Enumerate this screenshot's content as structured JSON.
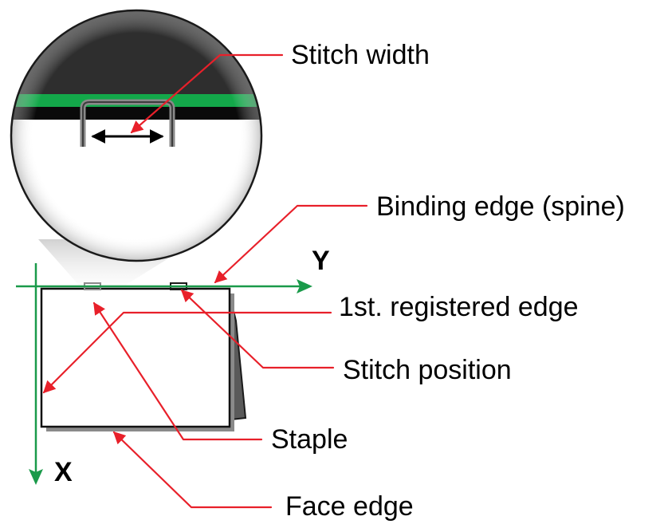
{
  "labels": {
    "stitch_width": "Stitch width",
    "binding_edge": "Binding edge (spine)",
    "first_registered_edge": "1st. registered edge",
    "stitch_position": "Stitch position",
    "staple": "Staple",
    "face_edge": "Face edge"
  },
  "axes": {
    "x": "X",
    "y": "Y"
  },
  "colors": {
    "leader_line": "#e8202a",
    "axis": "#1a9a4a",
    "band": "#13a84a",
    "magnifier_dark": "#2e2e2e",
    "sheet_shadow": "#7a7a7a"
  }
}
